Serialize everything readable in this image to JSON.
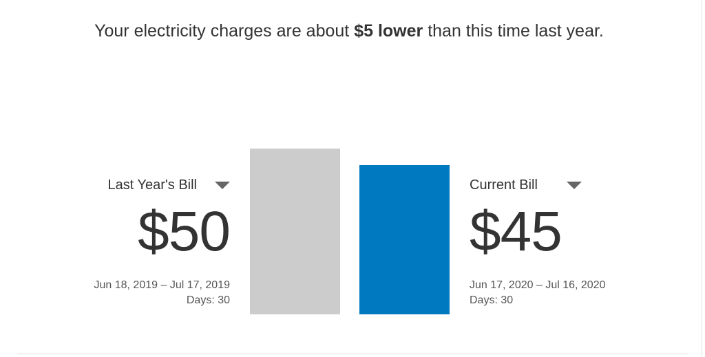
{
  "headline": {
    "prefix": "Your electricity charges are about",
    "emphasis": "$5 lower",
    "suffix": "than this time last year."
  },
  "last_year": {
    "label": "Last Year's Bill",
    "amount": "$50",
    "amount_value": 50,
    "dates": "Jun 18, 2019 – Jul 17, 2019",
    "days": "Days: 30",
    "bar_color": "#cccccc"
  },
  "current": {
    "label": "Current Bill",
    "amount": "$45",
    "amount_value": 45,
    "dates": "Jun 17, 2020 – Jul 16, 2020",
    "days": "Days: 30",
    "bar_color": "#0079c1"
  },
  "icons": {
    "dropdown": "caret-down-icon"
  }
}
